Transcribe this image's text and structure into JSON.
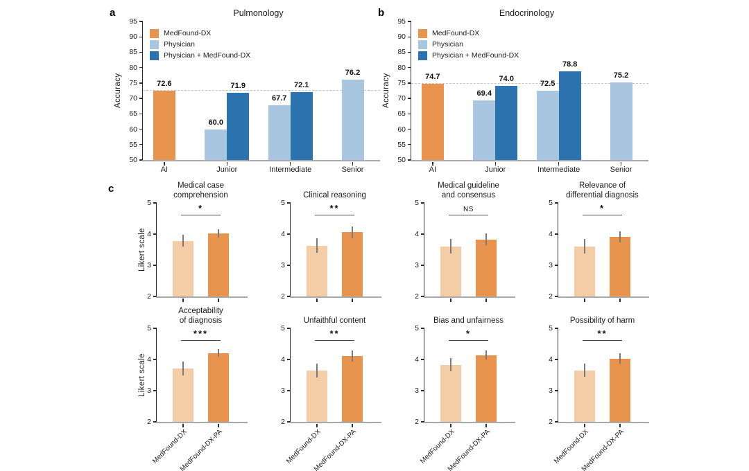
{
  "colors": {
    "orange": "#E8944E",
    "light_orange": "#F4CCA6",
    "light_blue": "#A8C6DF",
    "dark_blue": "#2B74B0",
    "error_bar": "#7a7a7a",
    "dashed_line": "#c4c4c4",
    "axis": "#2b2b2b",
    "baseline": "#a6aaad"
  },
  "panels": {
    "a": {
      "letter": "a",
      "title": "Pulmonology",
      "ylabel": "Accuracy"
    },
    "b": {
      "letter": "b",
      "title": "Endocrinology",
      "ylabel": "Accuracy"
    },
    "c": {
      "letter": "c",
      "ylabel": "Likert scale"
    }
  },
  "chart_data": [
    {
      "id": "a",
      "type": "bar",
      "title": "Pulmonology",
      "ylabel": "Accuracy",
      "ylim": [
        50,
        95
      ],
      "yticks": [
        50,
        55,
        60,
        65,
        70,
        75,
        80,
        85,
        90,
        95
      ],
      "categories": [
        "AI",
        "Junior",
        "Intermediate",
        "Senior"
      ],
      "series": [
        {
          "name": "MedFound-DX",
          "color_key": "orange",
          "values": [
            72.6,
            null,
            null,
            null
          ]
        },
        {
          "name": "Physician",
          "color_key": "light_blue",
          "values": [
            null,
            60.0,
            67.7,
            76.2
          ]
        },
        {
          "name": "Physician + MedFound-DX",
          "color_key": "dark_blue",
          "values": [
            null,
            71.9,
            72.1,
            null
          ]
        }
      ],
      "dashed_line": 72.6,
      "legend": [
        "MedFound-DX",
        "Physician",
        "Physician + MedFound-DX"
      ],
      "legend_colors": [
        "orange",
        "light_blue",
        "dark_blue"
      ],
      "legend_position": "upper left",
      "grid": false
    },
    {
      "id": "b",
      "type": "bar",
      "title": "Endocrinology",
      "ylabel": "Accuracy",
      "ylim": [
        50,
        95
      ],
      "yticks": [
        50,
        55,
        60,
        65,
        70,
        75,
        80,
        85,
        90,
        95
      ],
      "categories": [
        "AI",
        "Junior",
        "Intermediate",
        "Senior"
      ],
      "series": [
        {
          "name": "MedFound-DX",
          "color_key": "orange",
          "values": [
            74.7,
            null,
            null,
            null
          ]
        },
        {
          "name": "Physician",
          "color_key": "light_blue",
          "values": [
            null,
            69.4,
            72.5,
            75.2
          ]
        },
        {
          "name": "Physician + MedFound-DX",
          "color_key": "dark_blue",
          "values": [
            null,
            74.0,
            78.8,
            null
          ]
        }
      ],
      "dashed_line": 74.7,
      "legend": [
        "MedFound-DX",
        "Physician",
        "Physician + MedFound-DX"
      ],
      "legend_colors": [
        "orange",
        "light_blue",
        "dark_blue"
      ],
      "legend_position": "upper left",
      "grid": false
    },
    {
      "id": "c",
      "type": "bar",
      "ylabel": "Likert scale",
      "ylim": [
        2,
        5
      ],
      "yticks": [
        2,
        3,
        4,
        5
      ],
      "categories": [
        "MedFound-DX",
        "MedFound-DX-PA"
      ],
      "bar_colors": [
        "light_orange",
        "orange"
      ],
      "subplots": [
        {
          "title_lines": [
            "Medical case",
            "comprehension"
          ],
          "significance": "*",
          "values": [
            3.78,
            4.02
          ],
          "errors": [
            0.19,
            0.13
          ]
        },
        {
          "title_lines": [
            "Clinical reasoning"
          ],
          "significance": "**",
          "values": [
            3.63,
            4.06
          ],
          "errors": [
            0.24,
            0.19
          ]
        },
        {
          "title_lines": [
            "Medical guideline",
            "and consensus"
          ],
          "significance": "NS",
          "values": [
            3.61,
            3.83
          ],
          "errors": [
            0.24,
            0.19
          ]
        },
        {
          "title_lines": [
            "Relevance of",
            "differential diagnosis"
          ],
          "significance": "*",
          "values": [
            3.61,
            3.92
          ],
          "errors": [
            0.24,
            0.18
          ]
        },
        {
          "title_lines": [
            "Acceptability",
            "of diagnosis"
          ],
          "significance": "***",
          "values": [
            3.72,
            4.21
          ],
          "errors": [
            0.22,
            0.13
          ]
        },
        {
          "title_lines": [
            "Unfaithful content"
          ],
          "significance": "**",
          "values": [
            3.65,
            4.12
          ],
          "errors": [
            0.22,
            0.18
          ]
        },
        {
          "title_lines": [
            "Bias and unfairness"
          ],
          "significance": "*",
          "values": [
            3.83,
            4.14
          ],
          "errors": [
            0.21,
            0.15
          ]
        },
        {
          "title_lines": [
            "Possibility of harm"
          ],
          "significance": "**",
          "values": [
            3.65,
            4.03
          ],
          "errors": [
            0.21,
            0.17
          ]
        }
      ]
    }
  ]
}
